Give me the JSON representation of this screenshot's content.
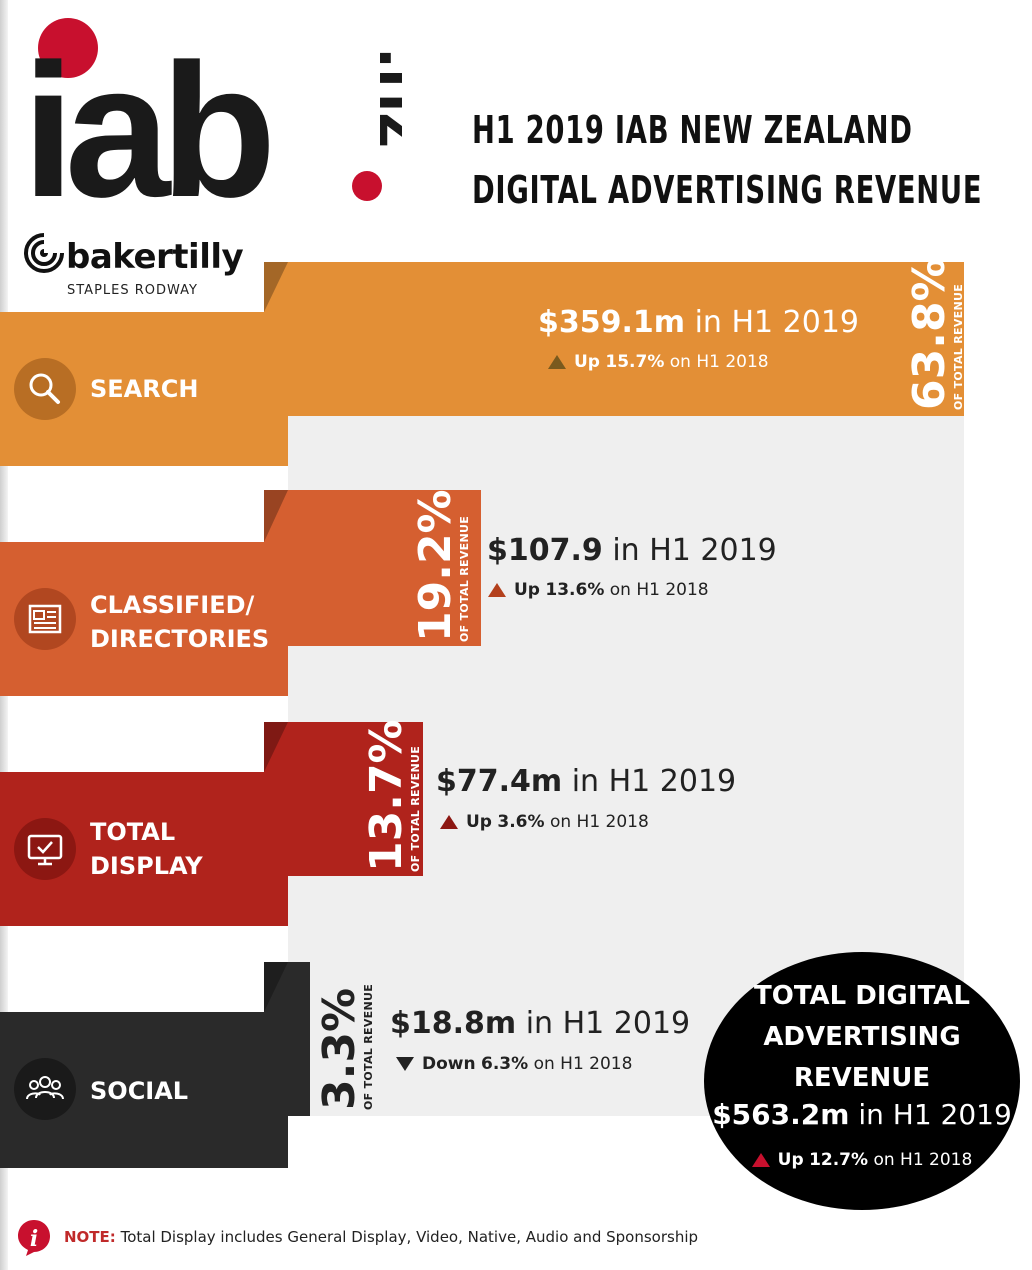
{
  "logo": {
    "brand": "iab",
    "suffix": ".nz"
  },
  "title": {
    "line1": "H1 2019 IAB NEW ZEALAND",
    "line2": "DIGITAL ADVERTISING REVENUE"
  },
  "sponsor": {
    "name": "bakertilly",
    "sub": "STAPLES RODWAY"
  },
  "colors": {
    "search": "#e38f36",
    "classified": "#d55f30",
    "display": "#b0231c",
    "social": "#2a2a2a",
    "gray": "#efefef"
  },
  "chart_data": {
    "type": "bar",
    "title": "H1 2019 IAB NEW ZEALAND DIGITAL ADVERTISING REVENUE",
    "categories": [
      "SEARCH",
      "CLASSIFIED/ DIRECTORIES",
      "TOTAL DISPLAY",
      "SOCIAL"
    ],
    "series": [
      {
        "values": [
          359.1,
          107.9,
          77.4,
          18.8
        ]
      }
    ],
    "share_pct": [
      63.8,
      19.2,
      13.7,
      3.3
    ],
    "items": [
      {
        "label_lines": [
          "SEARCH"
        ],
        "icon": "search-icon",
        "value_text": "$359.1m",
        "period": "in H1 2019",
        "direction": "up",
        "change_word": "Up",
        "change": "15.7%",
        "comparison": "on H1 2018",
        "pct_text": "63.8%",
        "pct_sub": "OF TOTAL REVENUE"
      },
      {
        "label_lines": [
          "CLASSIFIED/",
          "DIRECTORIES"
        ],
        "icon": "newspaper-icon",
        "value_text": "$107.9",
        "period": "in H1 2019",
        "direction": "up",
        "change_word": "Up",
        "change": "13.6%",
        "comparison": "on H1 2018",
        "pct_text": "19.2%",
        "pct_sub": "OF TOTAL REVENUE"
      },
      {
        "label_lines": [
          "TOTAL",
          "DISPLAY"
        ],
        "icon": "monitor-icon",
        "value_text": "$77.4m",
        "period": "in H1 2019",
        "direction": "up",
        "change_word": "Up",
        "change": "3.6%",
        "comparison": "on H1 2018",
        "pct_text": "13.7%",
        "pct_sub": "OF TOTAL REVENUE"
      },
      {
        "label_lines": [
          "SOCIAL"
        ],
        "icon": "people-icon",
        "value_text": "$18.8m",
        "period": "in H1 2019",
        "direction": "down",
        "change_word": "Down",
        "change": "6.3%",
        "comparison": "on H1 2018",
        "pct_text": "3.3%",
        "pct_sub": "OF TOTAL REVENUE"
      }
    ],
    "total": {
      "heading": [
        "TOTAL DIGITAL",
        "ADVERTISING",
        "REVENUE"
      ],
      "value_text": "$563.2m",
      "period": "in H1 2019",
      "change_word": "Up",
      "change": "12.7%",
      "comparison": "on H1 2018"
    }
  },
  "note": {
    "label": "NOTE:",
    "text": "Total Display includes General Display, Video, Native, Audio and Sponsorship"
  }
}
